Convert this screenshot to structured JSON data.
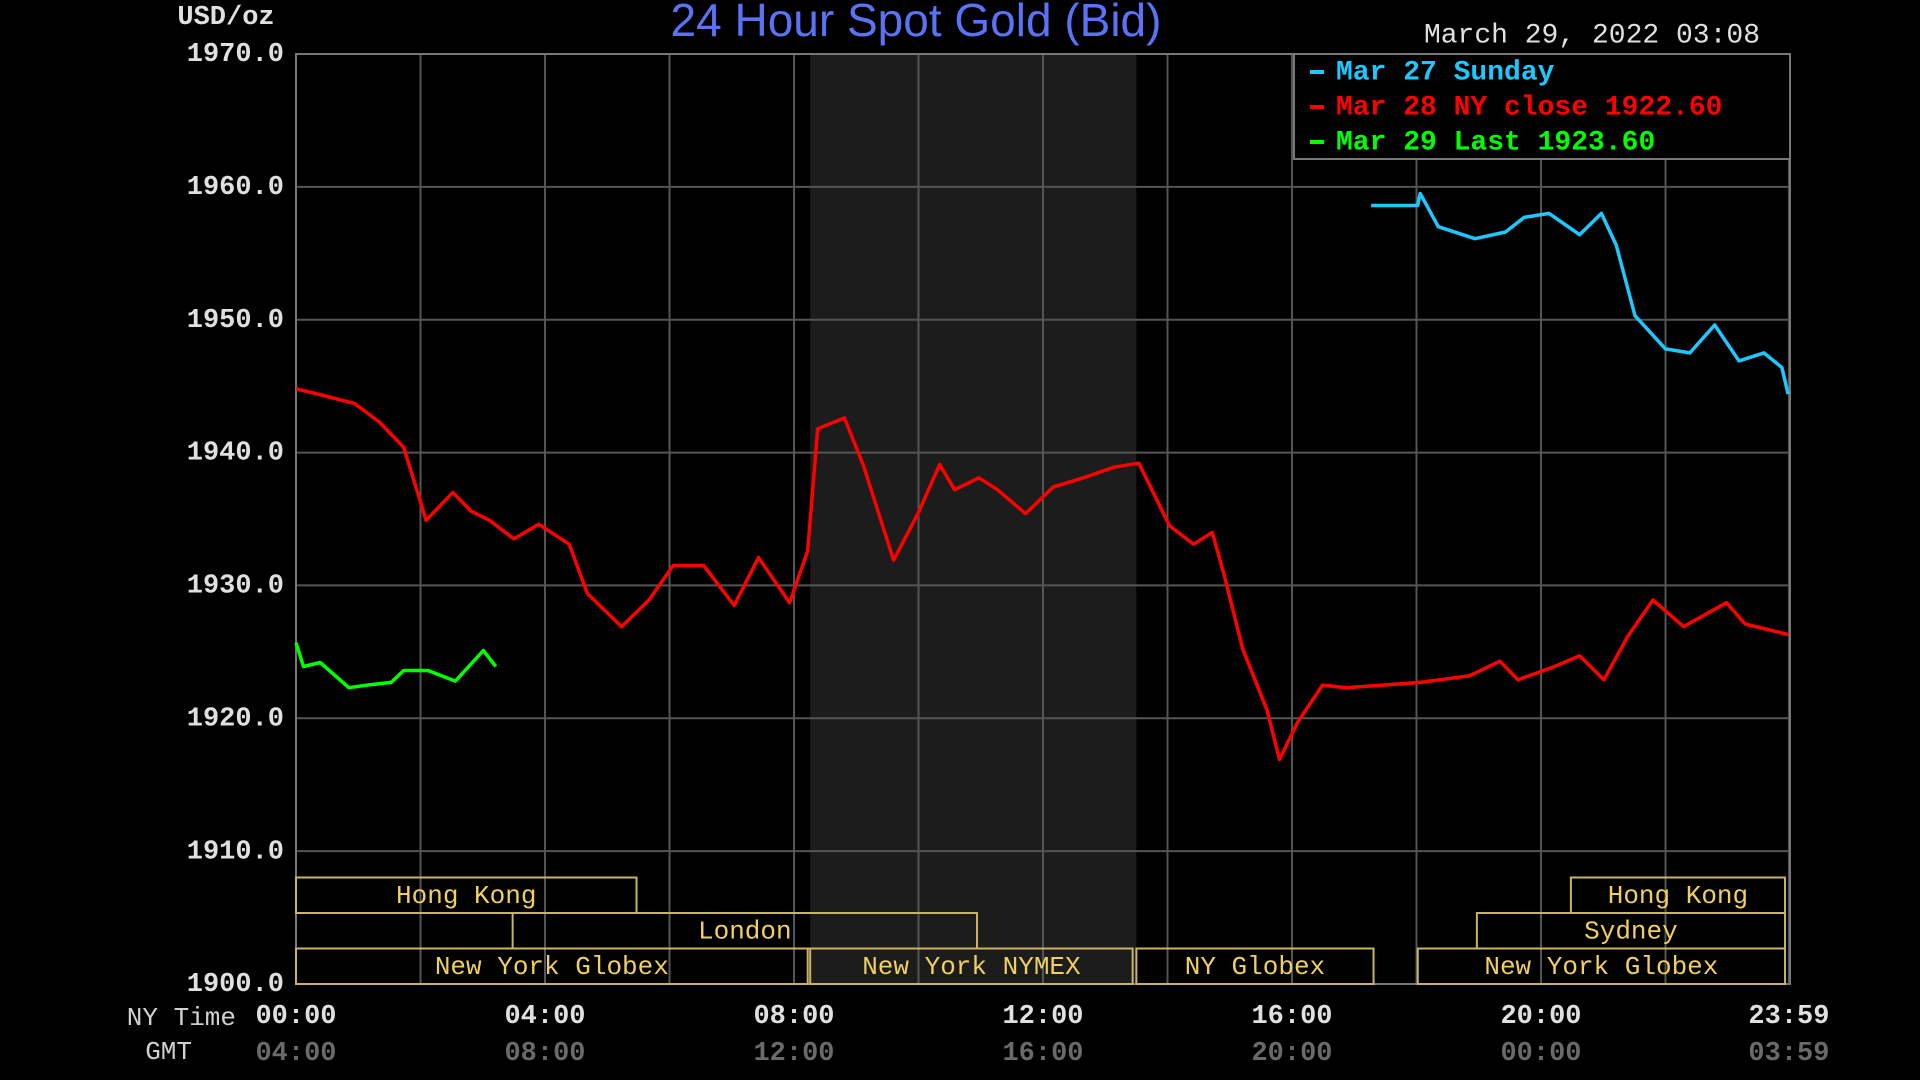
{
  "chart_data": {
    "type": "line",
    "title": "24 Hour Spot Gold (Bid)",
    "unit_label": "USD/oz",
    "timestamp": "March 29, 2022 03:08",
    "x_axis_label": "NY Time",
    "x2_axis_label": "GMT",
    "xlim": [
      0,
      24
    ],
    "xticks": [
      {
        "value": 0,
        "label": "00:00"
      },
      {
        "value": 4,
        "label": "04:00"
      },
      {
        "value": 8,
        "label": "08:00"
      },
      {
        "value": 12,
        "label": "12:00"
      },
      {
        "value": 16,
        "label": "16:00"
      },
      {
        "value": 20,
        "label": "20:00"
      },
      {
        "value": 23.983,
        "label": "23:59"
      }
    ],
    "gmt_labels": [
      "04:00",
      "08:00",
      "12:00",
      "16:00",
      "20:00",
      "00:00",
      "03:59"
    ],
    "x_minor_grid": [
      2,
      6,
      10,
      14,
      18,
      22,
      24
    ],
    "ylim": [
      1900,
      1970
    ],
    "yticks": [
      {
        "value": 1900,
        "label": "1900.0"
      },
      {
        "value": 1910,
        "label": "1910.0"
      },
      {
        "value": 1920,
        "label": "1920.0"
      },
      {
        "value": 1930,
        "label": "1930.0"
      },
      {
        "value": 1940,
        "label": "1940.0"
      },
      {
        "value": 1950,
        "label": "1950.0"
      },
      {
        "value": 1960,
        "label": "1960.0"
      },
      {
        "value": 1970,
        "label": "1970.0"
      }
    ],
    "grid": true,
    "legend_position": "upper right",
    "shaded_region": [
      8.26,
      13.5
    ],
    "sessions": [
      {
        "name": "Hong Kong",
        "row": 0,
        "start": 0,
        "end": 5.47
      },
      {
        "name": "Hong Kong",
        "row": 0,
        "start": 20.48,
        "end": 23.92
      },
      {
        "name": "London",
        "row": 1,
        "start": 3.48,
        "end": 10.94
      },
      {
        "name": "Sydney",
        "row": 1,
        "start": 18.97,
        "end": 23.92
      },
      {
        "name": "New York Globex",
        "row": 2,
        "start": 0,
        "end": 8.22
      },
      {
        "name": "New York NYMEX",
        "row": 2,
        "start": 8.26,
        "end": 13.44
      },
      {
        "name": "NY Globex",
        "row": 2,
        "start": 13.5,
        "end": 17.31
      },
      {
        "name": "New York Globex",
        "row": 2,
        "start": 18.02,
        "end": 23.92
      }
    ],
    "series": [
      {
        "name": "Mar 27 Sunday",
        "color": "#1ec8ff",
        "x": [
          17.27,
          18.02,
          18.06,
          18.35,
          18.94,
          19.43,
          19.73,
          20.13,
          20.62,
          20.97,
          21.21,
          21.51,
          22.0,
          22.39,
          22.79,
          23.18,
          23.58,
          23.87,
          23.97
        ],
        "values": [
          1958.6,
          1958.6,
          1959.5,
          1957.0,
          1956.1,
          1956.6,
          1957.7,
          1958.0,
          1956.4,
          1958.0,
          1955.6,
          1950.3,
          1947.8,
          1947.5,
          1949.6,
          1946.9,
          1947.5,
          1946.4,
          1944.4
        ]
      },
      {
        "name": "Mar 28 NY close 1922.60",
        "color": "#ff0000",
        "x": [
          0,
          0.35,
          0.94,
          1.34,
          1.73,
          2.09,
          2.52,
          2.81,
          3.11,
          3.5,
          3.9,
          4.39,
          4.68,
          5.23,
          5.67,
          6.06,
          6.55,
          7.04,
          7.43,
          7.93,
          8.22,
          8.38,
          8.81,
          9.11,
          9.6,
          9.99,
          10.34,
          10.58,
          10.97,
          11.27,
          11.72,
          12.16,
          12.65,
          13.14,
          13.54,
          14.03,
          14.42,
          14.72,
          14.91,
          15.21,
          15.6,
          15.8,
          16.09,
          16.49,
          16.88,
          18.06,
          18.85,
          19.34,
          19.63,
          20.22,
          20.62,
          21.01,
          21.4,
          21.8,
          22.29,
          22.98,
          23.28,
          23.97
        ],
        "values": [
          1944.8,
          1944.4,
          1943.7,
          1942.3,
          1940.4,
          1934.9,
          1937.0,
          1935.6,
          1934.9,
          1933.5,
          1934.6,
          1933.1,
          1929.4,
          1926.9,
          1928.9,
          1931.5,
          1931.5,
          1928.5,
          1932.1,
          1928.7,
          1932.6,
          1941.8,
          1942.6,
          1939.1,
          1931.9,
          1935.4,
          1939.1,
          1937.2,
          1938.1,
          1937.2,
          1935.4,
          1937.4,
          1938.1,
          1938.9,
          1939.2,
          1934.5,
          1933.1,
          1934.0,
          1930.8,
          1925.2,
          1920.6,
          1916.9,
          1919.7,
          1922.5,
          1922.3,
          1922.7,
          1923.2,
          1924.3,
          1922.9,
          1923.9,
          1924.7,
          1922.9,
          1926.2,
          1928.9,
          1926.9,
          1928.7,
          1927.1,
          1926.3
        ]
      },
      {
        "name": "Mar 29 Last 1923.60",
        "color": "#00ff00",
        "x": [
          0,
          0.12,
          0.39,
          0.85,
          1.14,
          1.53,
          1.73,
          2.12,
          2.56,
          3.01,
          3.21
        ],
        "values": [
          1925.7,
          1923.9,
          1924.2,
          1922.3,
          1922.5,
          1922.7,
          1923.6,
          1923.6,
          1922.8,
          1925.1,
          1923.9
        ]
      }
    ]
  }
}
